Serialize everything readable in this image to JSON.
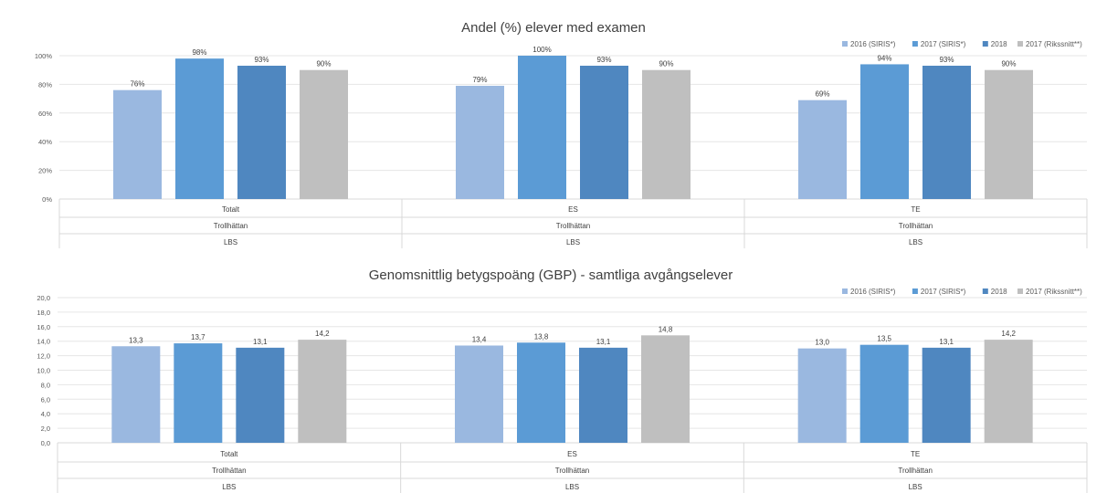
{
  "colors": {
    "s2016": "#9ab8e0",
    "s2017": "#5b9bd5",
    "s2018": "#4f87c0",
    "rikssnitt": "#bfbfbf",
    "grid": "#e6e6e6",
    "axis": "#d9d9d9"
  },
  "chart_data": [
    {
      "type": "bar",
      "title": "Andel (%) elever med examen",
      "xlabel": "",
      "ylabel": "",
      "ylim": [
        0,
        100
      ],
      "ytick_step": 20,
      "ytick_format": "percent",
      "legend": "top-right",
      "grid": true,
      "category_levels": [
        [
          "Totalt",
          "ES",
          "TE"
        ],
        [
          "Trollhättan",
          "Trollhättan",
          "Trollhättan"
        ],
        [
          "LBS",
          "LBS",
          "LBS"
        ]
      ],
      "categories": [
        "Totalt",
        "ES",
        "TE"
      ],
      "series": [
        {
          "name": "2016 (SIRIS*)",
          "values": [
            76,
            79,
            69
          ],
          "labels": [
            "76%",
            "79%",
            "69%"
          ]
        },
        {
          "name": "2017 (SIRIS*)",
          "values": [
            98,
            100,
            94
          ],
          "labels": [
            "98%",
            "100%",
            "94%"
          ]
        },
        {
          "name": "2018",
          "values": [
            93,
            93,
            93
          ],
          "labels": [
            "93%",
            "93%",
            "93%"
          ]
        },
        {
          "name": "2017 (Rikssnitt**)",
          "values": [
            90,
            90,
            90
          ],
          "labels": [
            "90%",
            "90%",
            "90%"
          ]
        }
      ]
    },
    {
      "type": "bar",
      "title": "Genomsnittlig betygspoäng (GBP) - samtliga avgångselever",
      "xlabel": "",
      "ylabel": "",
      "ylim": [
        0,
        20
      ],
      "ytick_step": 2,
      "ytick_format": "decimal-comma",
      "legend": "top-right",
      "grid": true,
      "category_levels": [
        [
          "Totalt",
          "ES",
          "TE"
        ],
        [
          "Trollhättan",
          "Trollhättan",
          "Trollhättan"
        ],
        [
          "LBS",
          "LBS",
          "LBS"
        ]
      ],
      "categories": [
        "Totalt",
        "ES",
        "TE"
      ],
      "series": [
        {
          "name": "2016 (SIRIS*)",
          "values": [
            13.3,
            13.4,
            13.0
          ],
          "labels": [
            "13,3",
            "13,4",
            "13,0"
          ]
        },
        {
          "name": "2017 (SIRIS*)",
          "values": [
            13.7,
            13.8,
            13.5
          ],
          "labels": [
            "13,7",
            "13,8",
            "13,5"
          ]
        },
        {
          "name": "2018",
          "values": [
            13.1,
            13.1,
            13.1
          ],
          "labels": [
            "13,1",
            "13,1",
            "13,1"
          ]
        },
        {
          "name": "2017 (Rikssnitt**)",
          "values": [
            14.2,
            14.8,
            14.2
          ],
          "labels": [
            "14,2",
            "14,8",
            "14,2"
          ]
        }
      ]
    }
  ]
}
